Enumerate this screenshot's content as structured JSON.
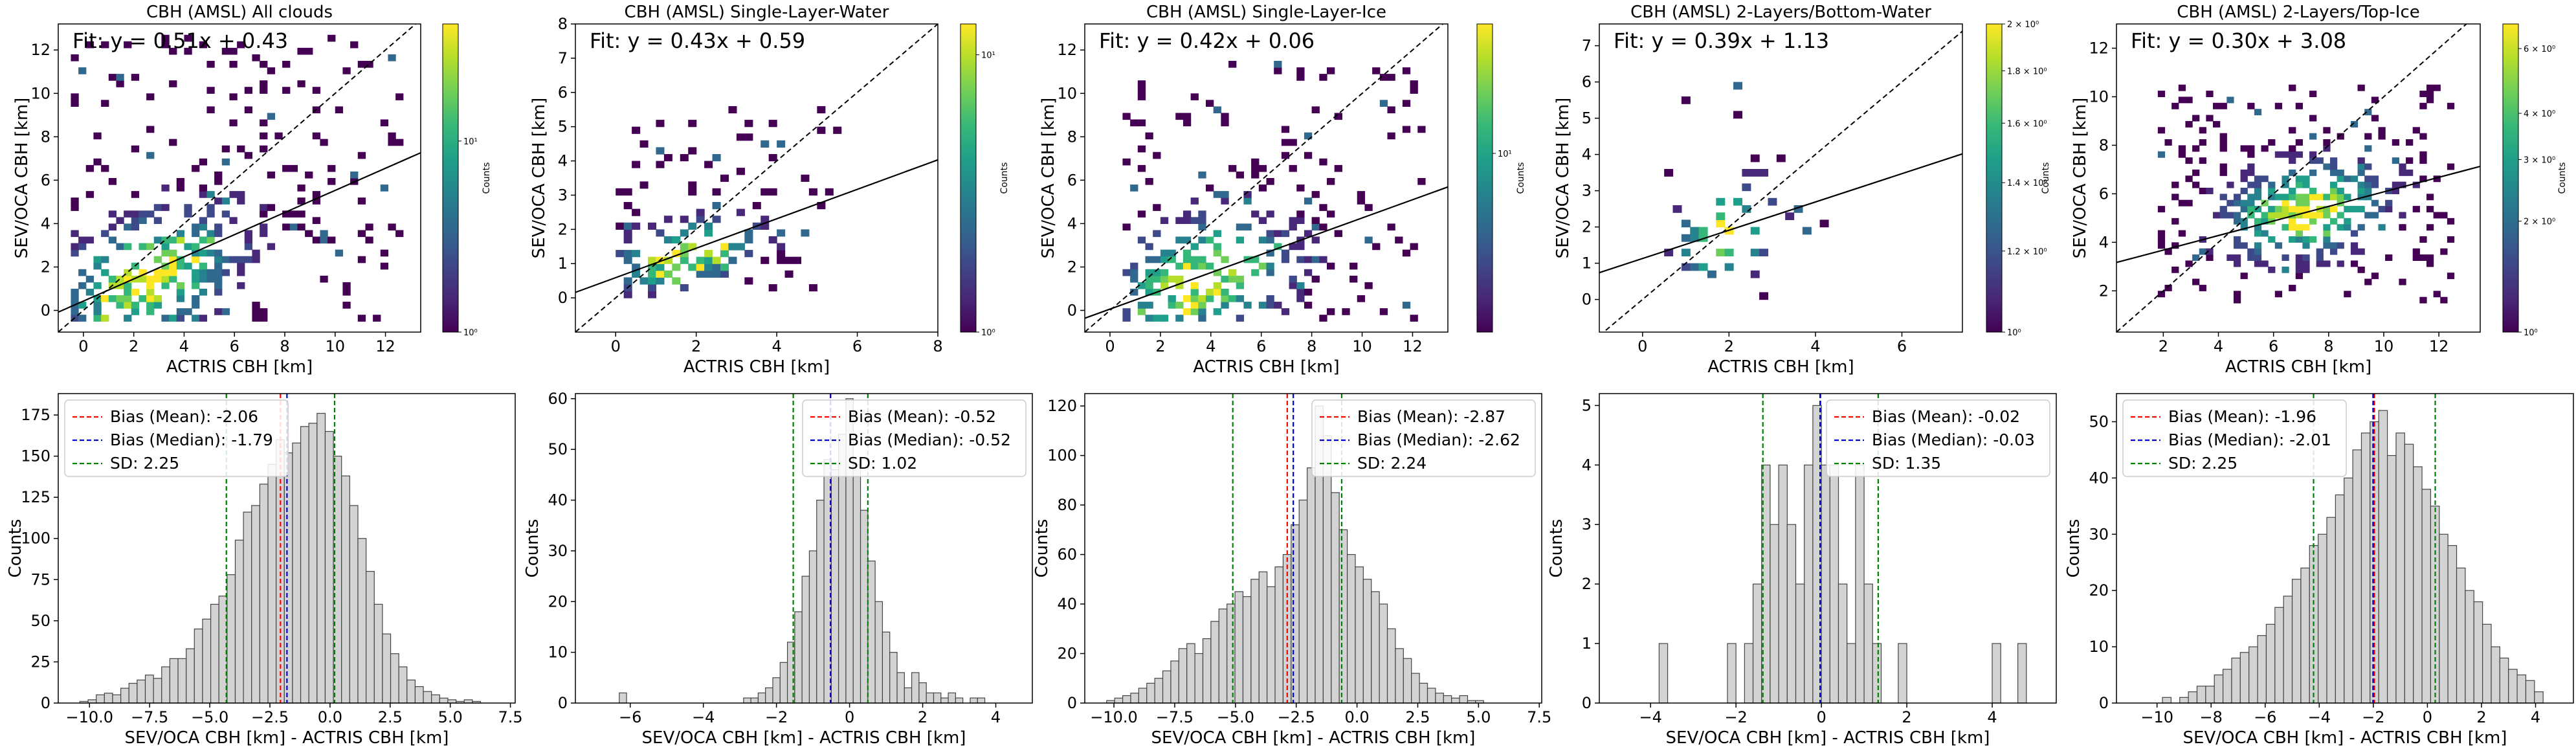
{
  "chart_data": [
    {
      "type": "heatmap",
      "title": "CBH (AMSL) All clouds",
      "xlabel": "ACTRIS CBH [km]",
      "ylabel": "SEV/OCA CBH [km]",
      "xlim": [
        -1,
        13.4
      ],
      "ylim": [
        -1,
        13.2
      ],
      "xticks": [
        0,
        2,
        4,
        6,
        8,
        10,
        12
      ],
      "yticks": [
        0,
        2,
        4,
        6,
        8,
        10,
        12
      ],
      "fit_text": "Fit: y = 0.51x + 0.43",
      "fit": {
        "slope": 0.51,
        "intercept": 0.43
      },
      "identity_line": true,
      "colorbar": {
        "label": "Counts",
        "scale": "log",
        "ticks": [
          "10⁰",
          "10¹"
        ],
        "tick_fracs": [
          0.0,
          0.62
        ]
      },
      "density": {
        "center": [
          2.5,
          1.2
        ],
        "spread": [
          2.6,
          2.0
        ],
        "extent": [
          -0.5,
          12.5,
          -0.5,
          12.5
        ],
        "bins": 0.3,
        "fill": 0.55,
        "seed": 11
      }
    },
    {
      "type": "heatmap",
      "title": "CBH (AMSL) Single-Layer-Water",
      "xlabel": "ACTRIS CBH [km]",
      "ylabel": "SEV/OCA CBH [km]",
      "xlim": [
        -1,
        8
      ],
      "ylim": [
        -1,
        8
      ],
      "xticks": [
        0,
        2,
        4,
        6,
        8
      ],
      "yticks": [
        0,
        1,
        2,
        3,
        4,
        5,
        6,
        7,
        8
      ],
      "fit_text": "Fit: y = 0.43x + 0.59",
      "fit": {
        "slope": 0.43,
        "intercept": 0.59
      },
      "identity_line": true,
      "colorbar": {
        "label": "Counts",
        "scale": "log",
        "ticks": [
          "10⁰",
          "10¹"
        ],
        "tick_fracs": [
          0.0,
          0.9
        ]
      },
      "density": {
        "center": [
          1.6,
          1.0
        ],
        "spread": [
          1.3,
          0.7
        ],
        "extent": [
          0,
          5.5,
          0,
          5.5
        ],
        "bins": 0.2,
        "fill": 0.5,
        "seed": 23
      }
    },
    {
      "type": "heatmap",
      "title": "CBH (AMSL) Single-Layer-Ice",
      "xlabel": "ACTRIS CBH [km]",
      "ylabel": "SEV/OCA CBH [km]",
      "xlim": [
        -1,
        13.4
      ],
      "ylim": [
        -1,
        13.2
      ],
      "xticks": [
        0,
        2,
        4,
        6,
        8,
        10,
        12
      ],
      "yticks": [
        0,
        2,
        4,
        6,
        8,
        10,
        12
      ],
      "fit_text": "Fit: y = 0.42x + 0.06",
      "fit": {
        "slope": 0.42,
        "intercept": 0.06
      },
      "identity_line": true,
      "colorbar": {
        "label": "Counts",
        "scale": "log",
        "ticks": [
          "10¹"
        ],
        "tick_fracs": [
          0.58
        ]
      },
      "density": {
        "center": [
          3.5,
          1.0
        ],
        "spread": [
          2.5,
          2.0
        ],
        "extent": [
          0.5,
          12.5,
          -0.5,
          11.5
        ],
        "bins": 0.3,
        "fill": 0.45,
        "seed": 37
      }
    },
    {
      "type": "heatmap",
      "title": "CBH (AMSL) 2-Layers/Bottom-Water",
      "xlabel": "ACTRIS CBH [km]",
      "ylabel": "SEV/OCA CBH [km]",
      "xlim": [
        -1,
        7.4
      ],
      "ylim": [
        -0.9,
        7.6
      ],
      "xticks": [
        0,
        2,
        4,
        6
      ],
      "yticks": [
        0,
        1,
        2,
        3,
        4,
        5,
        6,
        7
      ],
      "fit_text": "Fit: y = 0.39x + 1.13",
      "fit": {
        "slope": 0.39,
        "intercept": 1.13
      },
      "identity_line": true,
      "colorbar": {
        "label": "Counts",
        "scale": "log",
        "ticks": [
          "2 × 10⁰",
          "1.8 × 10⁰",
          "1.6 × 10⁰",
          "1.4 × 10⁰",
          "1.2 × 10⁰",
          "10⁰"
        ],
        "tick_fracs": [
          1.0,
          0.848,
          0.678,
          0.485,
          0.263,
          0.0
        ]
      },
      "density": {
        "center": [
          1.8,
          1.6
        ],
        "spread": [
          0.9,
          1.0
        ],
        "extent": [
          0.5,
          4.5,
          0,
          6.5
        ],
        "bins": 0.2,
        "fill": 0.18,
        "seed": 41
      }
    },
    {
      "type": "heatmap",
      "title": "CBH (AMSL) 2-Layers/Top-Ice",
      "xlabel": "ACTRIS CBH [km]",
      "ylabel": "SEV/OCA CBH [km]",
      "xlim": [
        0.3,
        13.5
      ],
      "ylim": [
        0.3,
        13.0
      ],
      "xticks": [
        2,
        4,
        6,
        8,
        10,
        12
      ],
      "yticks": [
        2,
        4,
        6,
        8,
        10,
        12
      ],
      "fit_text": "Fit: y = 0.30x + 3.08",
      "fit": {
        "slope": 0.3,
        "intercept": 3.08
      },
      "identity_line": true,
      "colorbar": {
        "label": "Counts",
        "scale": "log",
        "ticks": [
          "6 × 10⁰",
          "4 × 10⁰",
          "3 × 10⁰",
          "2 × 10⁰",
          "10⁰"
        ],
        "tick_fracs": [
          0.92,
          0.71,
          0.56,
          0.36,
          0.0
        ]
      },
      "density": {
        "center": [
          7.0,
          5.3
        ],
        "spread": [
          2.2,
          1.4
        ],
        "extent": [
          1.8,
          12.5,
          1.5,
          10.5
        ],
        "bins": 0.25,
        "fill": 0.6,
        "seed": 53
      }
    },
    {
      "type": "bar",
      "subtype": "histogram",
      "xlabel": "SEV/OCA CBH [km] - ACTRIS CBH [km]",
      "ylabel": "Counts",
      "xlim": [
        -11.3,
        7.7
      ],
      "ylim": [
        0,
        188
      ],
      "xticks": [
        -10.0,
        -7.5,
        -5.0,
        -2.5,
        0.0,
        2.5,
        5.0,
        7.5
      ],
      "xtick_labels": [
        "−10.0",
        "−7.5",
        "−5.0",
        "−2.5",
        "0.0",
        "2.5",
        "5.0",
        "7.5"
      ],
      "yticks": [
        0,
        25,
        50,
        75,
        100,
        125,
        150,
        175
      ],
      "bin_start": -10.4,
      "bin_width": 0.34,
      "counts": [
        1,
        2,
        5,
        6,
        5,
        9,
        12,
        14,
        17,
        15,
        22,
        27,
        27,
        33,
        45,
        51,
        60,
        65,
        78,
        99,
        116,
        120,
        133,
        145,
        160,
        152,
        158,
        168,
        170,
        176,
        165,
        150,
        138,
        120,
        100,
        80,
        60,
        42,
        30,
        22,
        14,
        10,
        7,
        5,
        3,
        2,
        1,
        2,
        1
      ],
      "legend": [
        {
          "label": "Bias (Mean): -2.06",
          "color": "#ff0000"
        },
        {
          "label": "Bias (Median): -1.79",
          "color": "#0000cc"
        },
        {
          "label": "SD: 2.25",
          "color": "#008000"
        }
      ],
      "legend_position": "upper-left",
      "lines": {
        "mean": -2.06,
        "median": -1.79,
        "sd": 2.25
      }
    },
    {
      "type": "bar",
      "subtype": "histogram",
      "xlabel": "SEV/OCA CBH [km] - ACTRIS CBH [km]",
      "ylabel": "Counts",
      "xlim": [
        -7.5,
        5.0
      ],
      "ylim": [
        0,
        61
      ],
      "xticks": [
        -6,
        -4,
        -2,
        0,
        2,
        4
      ],
      "xtick_labels": [
        "−6",
        "−4",
        "−2",
        "0",
        "2",
        "4"
      ],
      "yticks": [
        0,
        10,
        20,
        30,
        40,
        50,
        60
      ],
      "bin_start": -6.3,
      "bin_width": 0.2,
      "counts": [
        2,
        0,
        0,
        0,
        0,
        0,
        0,
        0,
        0,
        0,
        0,
        0,
        0,
        0,
        0,
        0,
        0,
        1,
        1,
        2,
        3,
        5,
        8,
        12,
        18,
        25,
        30,
        40,
        48,
        46,
        53,
        60,
        47,
        38,
        28,
        20,
        14,
        10,
        6,
        3,
        6,
        4,
        2,
        2,
        1,
        2,
        1,
        0,
        1,
        1
      ],
      "legend": [
        {
          "label": "Bias (Mean): -0.52",
          "color": "#ff0000"
        },
        {
          "label": "Bias (Median): -0.52",
          "color": "#0000cc"
        },
        {
          "label": "SD: 1.02",
          "color": "#008000"
        }
      ],
      "legend_position": "upper-right",
      "lines": {
        "mean": -0.52,
        "median": -0.52,
        "sd": 1.02
      }
    },
    {
      "type": "bar",
      "subtype": "histogram",
      "xlabel": "SEV/OCA CBH [km] - ACTRIS CBH [km]",
      "ylabel": "Counts",
      "xlim": [
        -11.2,
        7.6
      ],
      "ylim": [
        0,
        125
      ],
      "xticks": [
        -10.0,
        -7.5,
        -5.0,
        -2.5,
        0.0,
        2.5,
        5.0,
        7.5
      ],
      "xtick_labels": [
        "−10.0",
        "−7.5",
        "−5.0",
        "−2.5",
        "0.0",
        "2.5",
        "5.0",
        "7.5"
      ],
      "yticks": [
        0,
        20,
        40,
        60,
        80,
        100,
        120
      ],
      "bin_start": -10.3,
      "bin_width": 0.33,
      "counts": [
        1,
        2,
        3,
        4,
        6,
        8,
        10,
        13,
        17,
        22,
        24,
        20,
        26,
        33,
        38,
        40,
        45,
        43,
        50,
        53,
        47,
        55,
        60,
        72,
        82,
        95,
        120,
        108,
        85,
        70,
        60,
        55,
        50,
        45,
        40,
        30,
        22,
        18,
        12,
        8,
        6,
        4,
        3,
        2,
        3,
        1,
        1
      ],
      "legend": [
        {
          "label": "Bias (Mean): -2.87",
          "color": "#ff0000"
        },
        {
          "label": "Bias (Median): -2.62",
          "color": "#0000cc"
        },
        {
          "label": "SD: 2.24",
          "color": "#008000"
        }
      ],
      "legend_position": "upper-right",
      "lines": {
        "mean": -2.87,
        "median": -2.62,
        "sd": 2.24
      }
    },
    {
      "type": "bar",
      "subtype": "histogram",
      "xlabel": "SEV/OCA CBH [km] - ACTRIS CBH [km]",
      "ylabel": "Counts",
      "xlim": [
        -5.2,
        5.5
      ],
      "ylim": [
        0,
        5.2
      ],
      "xticks": [
        -4,
        -2,
        0,
        2,
        4
      ],
      "xtick_labels": [
        "−4",
        "−2",
        "0",
        "2",
        "4"
      ],
      "yticks": [
        0,
        1,
        2,
        3,
        4,
        5
      ],
      "bin_start": -3.8,
      "bin_width": 0.2,
      "counts": [
        1,
        0,
        0,
        0,
        0,
        0,
        0,
        0,
        1,
        0,
        1,
        2,
        4,
        3,
        4,
        3,
        2,
        4,
        5,
        4,
        4,
        2,
        1,
        4,
        2,
        1,
        0,
        0,
        1,
        0,
        0,
        0,
        0,
        0,
        0,
        0,
        0,
        0,
        0,
        1,
        0,
        0,
        1
      ],
      "legend": [
        {
          "label": "Bias (Mean): -0.02",
          "color": "#ff0000"
        },
        {
          "label": "Bias (Median): -0.03",
          "color": "#0000cc"
        },
        {
          "label": "SD: 1.35",
          "color": "#008000"
        }
      ],
      "legend_position": "upper-right",
      "lines": {
        "mean": -0.02,
        "median": -0.03,
        "sd": 1.35
      }
    },
    {
      "type": "bar",
      "subtype": "histogram",
      "xlabel": "SEV/OCA CBH [km] - ACTRIS CBH [km]",
      "ylabel": "Counts",
      "xlim": [
        -11.5,
        5.4
      ],
      "ylim": [
        0,
        55
      ],
      "xticks": [
        -10,
        -8,
        -6,
        -4,
        -2,
        0,
        2,
        4
      ],
      "xtick_labels": [
        "−10",
        "−8",
        "−6",
        "−4",
        "−2",
        "0",
        "2",
        "4"
      ],
      "yticks": [
        0,
        10,
        20,
        30,
        40,
        50
      ],
      "bin_start": -9.8,
      "bin_width": 0.32,
      "counts": [
        1,
        0,
        1,
        2,
        3,
        3,
        5,
        6,
        8,
        9,
        10,
        12,
        14,
        17,
        19,
        22,
        24,
        28,
        30,
        33,
        37,
        40,
        45,
        48,
        50,
        52,
        44,
        48,
        46,
        42,
        38,
        35,
        30,
        28,
        24,
        20,
        18,
        14,
        10,
        8,
        6,
        5,
        4,
        2
      ],
      "legend": [
        {
          "label": "Bias (Mean): -1.96",
          "color": "#ff0000"
        },
        {
          "label": "Bias (Median): -2.01",
          "color": "#0000cc"
        },
        {
          "label": "SD: 2.25",
          "color": "#008000"
        }
      ],
      "legend_position": "upper-left",
      "lines": {
        "mean": -1.96,
        "median": -2.01,
        "sd": 2.25
      }
    }
  ],
  "colors": {
    "hist_fill": "#d3d3d3",
    "hist_edge": "#444444",
    "mean_line": "#ff0000",
    "median_line": "#0000cc",
    "sd_line": "#008000",
    "viridis": [
      "#440154",
      "#482878",
      "#3e4989",
      "#31688e",
      "#26828e",
      "#1f9e89",
      "#35b779",
      "#6ece58",
      "#b5de2b",
      "#fde725"
    ]
  }
}
